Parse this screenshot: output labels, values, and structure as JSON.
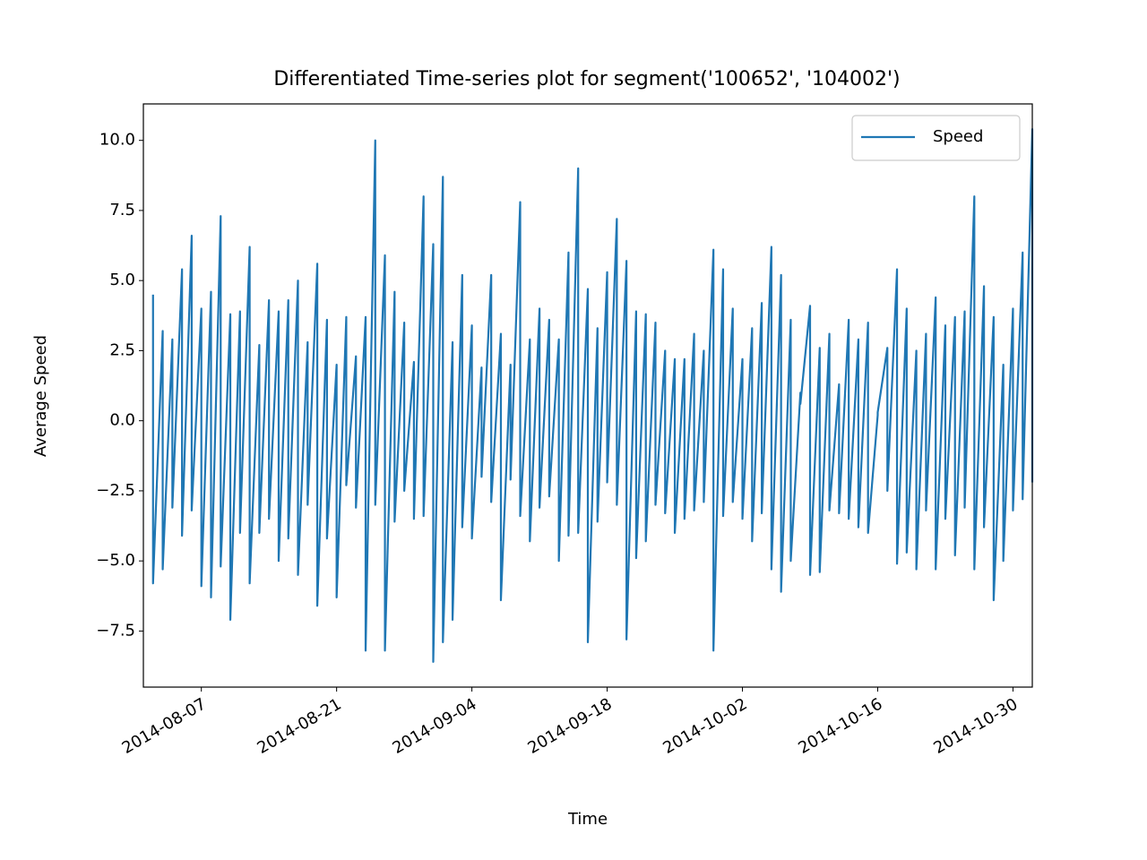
{
  "chart_data": {
    "type": "line",
    "title": "Differentiated Time-series plot for segment('100652', '104002')",
    "xlabel": "Time",
    "ylabel": "Average Speed",
    "x": [
      "2014-08-02",
      "2014-08-02",
      "2014-08-03",
      "2014-08-03",
      "2014-08-04",
      "2014-08-04",
      "2014-08-05",
      "2014-08-05",
      "2014-08-06",
      "2014-08-06",
      "2014-08-07",
      "2014-08-07",
      "2014-08-08",
      "2014-08-08",
      "2014-08-09",
      "2014-08-09",
      "2014-08-10",
      "2014-08-10",
      "2014-08-11",
      "2014-08-11",
      "2014-08-12",
      "2014-08-12",
      "2014-08-13",
      "2014-08-13",
      "2014-08-14",
      "2014-08-14",
      "2014-08-15",
      "2014-08-15",
      "2014-08-16",
      "2014-08-16",
      "2014-08-17",
      "2014-08-17",
      "2014-08-18",
      "2014-08-18",
      "2014-08-19",
      "2014-08-19",
      "2014-08-20",
      "2014-08-20",
      "2014-08-21",
      "2014-08-21",
      "2014-08-22",
      "2014-08-22",
      "2014-08-23",
      "2014-08-23",
      "2014-08-24",
      "2014-08-24",
      "2014-08-25",
      "2014-08-25",
      "2014-08-26",
      "2014-08-26",
      "2014-08-27",
      "2014-08-27",
      "2014-08-28",
      "2014-08-28",
      "2014-08-29",
      "2014-08-29",
      "2014-08-30",
      "2014-08-30",
      "2014-08-31",
      "2014-08-31",
      "2014-09-01",
      "2014-09-01",
      "2014-09-02",
      "2014-09-02",
      "2014-09-03",
      "2014-09-03",
      "2014-09-04",
      "2014-09-04",
      "2014-09-05",
      "2014-09-05",
      "2014-09-06",
      "2014-09-06",
      "2014-09-07",
      "2014-09-07",
      "2014-09-08",
      "2014-09-08",
      "2014-09-09",
      "2014-09-09",
      "2014-09-10",
      "2014-09-10",
      "2014-09-11",
      "2014-09-11",
      "2014-09-12",
      "2014-09-12",
      "2014-09-13",
      "2014-09-13",
      "2014-09-14",
      "2014-09-14",
      "2014-09-15",
      "2014-09-15",
      "2014-09-16",
      "2014-09-16",
      "2014-09-17",
      "2014-09-17",
      "2014-09-18",
      "2014-09-18",
      "2014-09-19",
      "2014-09-19",
      "2014-09-20",
      "2014-09-20",
      "2014-09-21",
      "2014-09-21",
      "2014-09-22",
      "2014-09-22",
      "2014-09-23",
      "2014-09-23",
      "2014-09-24",
      "2014-09-24",
      "2014-09-25",
      "2014-09-25",
      "2014-09-26",
      "2014-09-26",
      "2014-09-27",
      "2014-09-27",
      "2014-09-28",
      "2014-09-28",
      "2014-09-29",
      "2014-09-29",
      "2014-09-30",
      "2014-09-30",
      "2014-10-01",
      "2014-10-01",
      "2014-10-02",
      "2014-10-02",
      "2014-10-03",
      "2014-10-03",
      "2014-10-04",
      "2014-10-04",
      "2014-10-05",
      "2014-10-05",
      "2014-10-06",
      "2014-10-06",
      "2014-10-07",
      "2014-10-07",
      "2014-10-08",
      "2014-10-08",
      "2014-10-09",
      "2014-10-09",
      "2014-10-10",
      "2014-10-10",
      "2014-10-11",
      "2014-10-11",
      "2014-10-12",
      "2014-10-12",
      "2014-10-13",
      "2014-10-13",
      "2014-10-14",
      "2014-10-14",
      "2014-10-15",
      "2014-10-15",
      "2014-10-16",
      "2014-10-16",
      "2014-10-17",
      "2014-10-17",
      "2014-10-18",
      "2014-10-18",
      "2014-10-19",
      "2014-10-19",
      "2014-10-20",
      "2014-10-20",
      "2014-10-21",
      "2014-10-21",
      "2014-10-22",
      "2014-10-22",
      "2014-10-23",
      "2014-10-23",
      "2014-10-24",
      "2014-10-24",
      "2014-10-25",
      "2014-10-25",
      "2014-10-26",
      "2014-10-26",
      "2014-10-27",
      "2014-10-27",
      "2014-10-28",
      "2014-10-28",
      "2014-10-29",
      "2014-10-29",
      "2014-10-30",
      "2014-10-30",
      "2014-10-31",
      "2014-10-31",
      "2014-11-01",
      "2014-11-01"
    ],
    "series": [
      {
        "name": "Speed",
        "color": "#1f77b4",
        "values": [
          4.5,
          -5.8,
          3.2,
          -5.3,
          2.9,
          -3.1,
          5.4,
          -4.1,
          6.6,
          -3.2,
          4.0,
          -5.9,
          4.6,
          -6.3,
          7.3,
          -5.2,
          3.8,
          -7.1,
          3.9,
          -4.0,
          6.2,
          -5.8,
          2.7,
          -4.0,
          4.3,
          -3.5,
          3.9,
          -5.0,
          4.3,
          -4.2,
          5.0,
          -5.5,
          2.8,
          -3.0,
          5.6,
          -6.6,
          3.6,
          -4.2,
          2.0,
          -6.3,
          3.7,
          -2.3,
          2.3,
          -3.1,
          3.7,
          -8.2,
          10.0,
          -3.0,
          5.9,
          -8.2,
          4.6,
          -3.6,
          3.5,
          -2.5,
          2.1,
          -3.5,
          8.0,
          -3.4,
          6.3,
          -8.6,
          8.7,
          -7.9,
          2.8,
          -7.1,
          5.2,
          -3.8,
          3.4,
          -4.2,
          1.9,
          -2.0,
          5.2,
          -2.9,
          3.1,
          -6.4,
          2.0,
          -2.1,
          7.8,
          -3.4,
          2.9,
          -4.3,
          4.0,
          -3.1,
          3.6,
          -2.7,
          2.9,
          -5.0,
          6.0,
          -4.1,
          9.0,
          -4.0,
          4.7,
          -7.9,
          3.3,
          -3.6,
          5.3,
          -2.2,
          7.2,
          -3.0,
          5.7,
          -7.8,
          3.9,
          -4.9,
          3.8,
          -4.3,
          3.5,
          -3.0,
          2.5,
          -3.3,
          2.2,
          -4.0,
          2.2,
          -3.5,
          3.1,
          -3.2,
          2.5,
          -2.9,
          6.1,
          -8.2,
          5.4,
          -3.4,
          4.0,
          -2.9,
          2.2,
          -3.5,
          3.3,
          -4.3,
          4.2,
          -3.3,
          6.2,
          -5.3,
          5.2,
          -6.1,
          3.6,
          -5.0,
          1.0,
          0.6,
          4.1,
          -5.5,
          2.6,
          -5.4,
          3.1,
          -3.2,
          1.3,
          -3.3,
          3.6,
          -3.5,
          2.9,
          -3.8,
          3.5,
          -4.0,
          0.2,
          0.3,
          2.6,
          -2.5,
          5.4,
          -5.1,
          4.0,
          -4.7,
          2.5,
          -5.3,
          3.1,
          -3.2,
          4.4,
          -5.3,
          3.4,
          -3.5,
          3.7,
          -4.8,
          3.9,
          -3.1,
          8.0,
          -5.3,
          4.8,
          -3.8,
          3.7,
          -6.4,
          2.0,
          -5.0,
          4.0,
          -3.2,
          6.0,
          -2.8,
          10.4,
          -2.2
        ]
      }
    ],
    "xlim": [
      "2014-08-01",
      "2014-11-01"
    ],
    "xticks": [
      "2014-08-07",
      "2014-08-21",
      "2014-09-04",
      "2014-09-18",
      "2014-10-02",
      "2014-10-16",
      "2014-10-30"
    ],
    "ylim": [
      -9.5,
      11.3
    ],
    "yticks": [
      {
        "value": -7.5,
        "label": "−7.5"
      },
      {
        "value": -5,
        "label": "−5.0"
      },
      {
        "value": -2.5,
        "label": "−2.5"
      },
      {
        "value": 0,
        "label": "0.0"
      },
      {
        "value": 2.5,
        "label": "2.5"
      },
      {
        "value": 5,
        "label": "5.0"
      },
      {
        "value": 7.5,
        "label": "7.5"
      },
      {
        "value": 10,
        "label": "10.0"
      }
    ],
    "legend": "upper right",
    "grid": false
  }
}
